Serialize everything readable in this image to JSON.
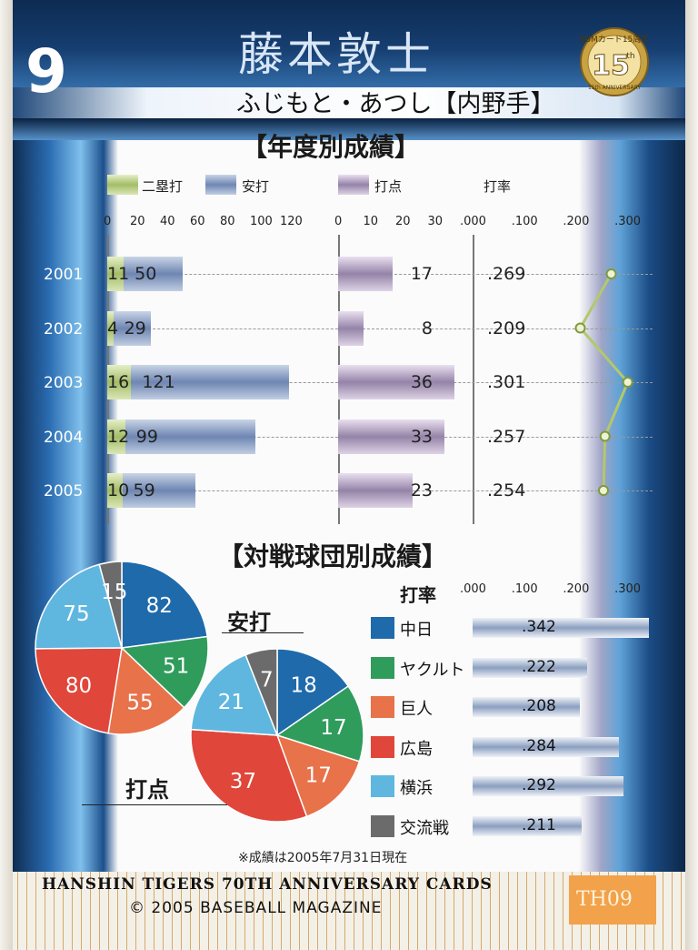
{
  "player": {
    "number": "9",
    "name": "藤本敦士",
    "kana": "ふじもと・あつし",
    "position": "【内野手】"
  },
  "logo": {
    "top": "BBMカード15周年",
    "number": "15",
    "suffix": "th",
    "bottom": "15th ANNIVERSARY"
  },
  "yearly": {
    "title": "【年度別成績】",
    "legend": [
      "二塁打",
      "安打",
      "打点",
      "打率"
    ],
    "hits_ticks": [
      "0",
      "20",
      "40",
      "60",
      "80",
      "100",
      "120"
    ],
    "rbi_ticks": [
      "0",
      "10",
      "20",
      "30"
    ],
    "avg_ticks": [
      ".000",
      ".100",
      ".200",
      ".300"
    ],
    "rows": [
      {
        "year": "2001",
        "doubles": 11,
        "hits": 50,
        "rbi": 17,
        "avg": ".269"
      },
      {
        "year": "2002",
        "doubles": 4,
        "hits": 29,
        "rbi": 8,
        "avg": ".209"
      },
      {
        "year": "2003",
        "doubles": 16,
        "hits": 121,
        "rbi": 36,
        "avg": ".301"
      },
      {
        "year": "2004",
        "doubles": 12,
        "hits": 99,
        "rbi": 33,
        "avg": ".257"
      },
      {
        "year": "2005",
        "doubles": 10,
        "hits": 59,
        "rbi": 23,
        "avg": ".254"
      }
    ]
  },
  "vs_team": {
    "title": "【対戦球団別成績】",
    "hits_label": "安打",
    "rbi_label": "打点",
    "avg_label": "打率",
    "avg_ticks": [
      ".000",
      ".100",
      ".200",
      ".300"
    ],
    "teams": [
      {
        "name": "中日",
        "color": "#1f6aab",
        "hits": 82,
        "rbi": 18,
        "avg": ".342"
      },
      {
        "name": "ヤクルト",
        "color": "#2f9c5c",
        "hits": 51,
        "rbi": 17,
        "avg": ".222"
      },
      {
        "name": "巨人",
        "color": "#e8724a",
        "hits": 55,
        "rbi": 17,
        "avg": ".208"
      },
      {
        "name": "広島",
        "color": "#e0463a",
        "hits": 80,
        "rbi": 37,
        "avg": ".284"
      },
      {
        "name": "横浜",
        "color": "#5fb7e0",
        "hits": 75,
        "rbi": 21,
        "avg": ".292"
      },
      {
        "name": "交流戦",
        "color": "#6b6b6b",
        "hits": 15,
        "rbi": 7,
        "avg": ".211"
      }
    ]
  },
  "note": "※成績は2005年7月31日現在",
  "footer": {
    "series": "HANSHIN TIGERS 70TH ANNIVERSARY CARDS",
    "copyright": "© 2005 BASEBALL MAGAZINE",
    "code": "TH09"
  }
}
